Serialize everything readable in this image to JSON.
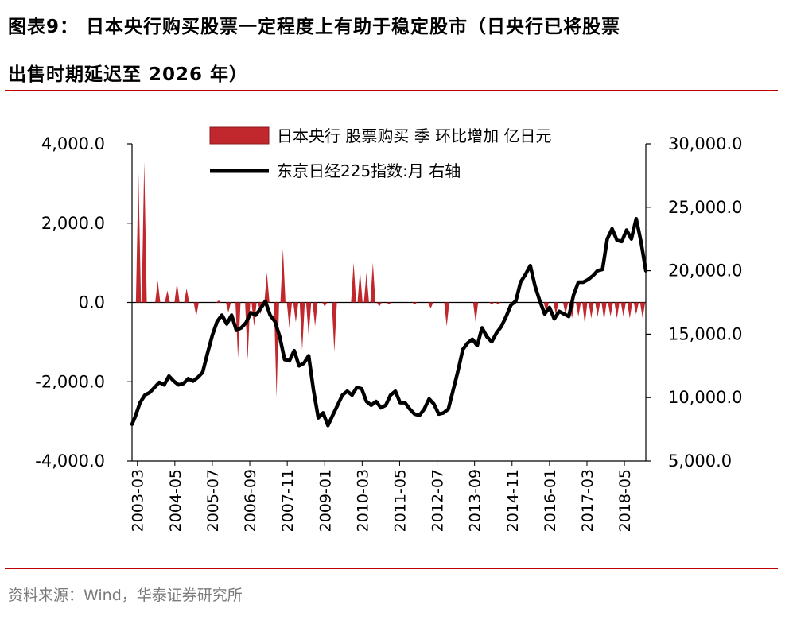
{
  "title": {
    "line1": "图表9：  日本央行购买股票一定程度上有助于稳定股市（日央行已将股票",
    "line2": "出售时期延迟至 2026 年）"
  },
  "source": "资料来源：Wind，华泰证券研究所",
  "colors": {
    "bar": "#c0282d",
    "line": "#000000",
    "accent": "#c00000"
  },
  "chart_data": {
    "type": "bar+line",
    "legend_position": "top-right",
    "x_ticks": [
      "2003-03",
      "2004-05",
      "2005-07",
      "2006-09",
      "2007-11",
      "2009-01",
      "2010-03",
      "2011-05",
      "2012-07",
      "2013-09",
      "2014-11",
      "2016-01",
      "2017-03",
      "2018-05"
    ],
    "y_left": {
      "min": -4000,
      "max": 4000,
      "ticks": [
        "4,000.0",
        "2,000.0",
        "0.0",
        "-2,000.0",
        "-4,000.0"
      ]
    },
    "y_right": {
      "min": 5000,
      "max": 30000,
      "ticks": [
        "30,000.0",
        "25,000.0",
        "20,000.0",
        "15,000.0",
        "10,000.0",
        "5,000.0"
      ]
    },
    "series": [
      {
        "name": "日本央行 股票购买 季 环比增加 亿日元",
        "type": "bar",
        "axis": "left",
        "x": [
          2003.2,
          2003.38,
          2003.8,
          2004.1,
          2004.4,
          2004.7,
          2005.0,
          2005.7,
          2006.0,
          2006.3,
          2006.6,
          2006.8,
          2007.0,
          2007.2,
          2007.5,
          2007.7,
          2007.9,
          2008.1,
          2008.3,
          2008.5,
          2008.7,
          2009.0,
          2009.3,
          2009.9,
          2010.1,
          2010.3,
          2010.5,
          2010.7,
          2011.0,
          2011.8,
          2012.3,
          2012.8,
          2013.7,
          2014.2,
          2014.4,
          2015.9,
          2016.2,
          2016.5,
          2016.7,
          2016.9,
          2017.1,
          2017.3,
          2017.5,
          2017.7,
          2017.9,
          2018.1,
          2018.3,
          2018.5,
          2018.7,
          2018.9
        ],
        "values": [
          3250,
          3550,
          550,
          300,
          500,
          350,
          -350,
          50,
          -250,
          -1400,
          -1450,
          -600,
          -300,
          750,
          -2400,
          1350,
          -650,
          -500,
          -1200,
          -850,
          -600,
          -100,
          -1250,
          1000,
          800,
          750,
          1000,
          -100,
          -50,
          -50,
          -150,
          -600,
          -500,
          -50,
          -50,
          -250,
          -300,
          -300,
          -400,
          -350,
          -550,
          -400,
          -350,
          -450,
          -350,
          -400,
          -350,
          -400,
          -300,
          -400
        ]
      },
      {
        "name": "东京日经225指数:月 右轴",
        "type": "line",
        "axis": "right",
        "x": [
          2003.0,
          2003.1,
          2003.25,
          2003.4,
          2003.55,
          2003.7,
          2003.85,
          2004.0,
          2004.15,
          2004.3,
          2004.45,
          2004.6,
          2004.75,
          2004.9,
          2005.05,
          2005.2,
          2005.35,
          2005.5,
          2005.65,
          2005.8,
          2005.95,
          2006.1,
          2006.25,
          2006.4,
          2006.55,
          2006.7,
          2006.85,
          2007.0,
          2007.15,
          2007.3,
          2007.45,
          2007.6,
          2007.75,
          2007.9,
          2008.05,
          2008.2,
          2008.35,
          2008.5,
          2008.65,
          2008.8,
          2008.95,
          2009.1,
          2009.25,
          2009.4,
          2009.55,
          2009.7,
          2009.85,
          2010.0,
          2010.15,
          2010.3,
          2010.45,
          2010.6,
          2010.75,
          2010.9,
          2011.05,
          2011.2,
          2011.35,
          2011.5,
          2011.65,
          2011.8,
          2011.95,
          2012.1,
          2012.25,
          2012.4,
          2012.55,
          2012.7,
          2012.85,
          2013.0,
          2013.15,
          2013.3,
          2013.45,
          2013.6,
          2013.75,
          2013.9,
          2014.05,
          2014.2,
          2014.35,
          2014.5,
          2014.65,
          2014.8,
          2014.95,
          2015.1,
          2015.25,
          2015.4,
          2015.55,
          2015.7,
          2015.85,
          2016.0,
          2016.15,
          2016.3,
          2016.45,
          2016.6,
          2016.75,
          2016.9,
          2017.05,
          2017.2,
          2017.35,
          2017.5,
          2017.65,
          2017.8,
          2017.95,
          2018.1,
          2018.25,
          2018.4,
          2018.55,
          2018.7,
          2018.85,
          2019.0
        ],
        "values": [
          7900,
          8500,
          9600,
          10200,
          10400,
          10800,
          11200,
          11000,
          11700,
          11300,
          11000,
          11100,
          11500,
          11300,
          11600,
          12000,
          13500,
          14900,
          16000,
          16500,
          15800,
          16500,
          15300,
          15500,
          15900,
          16700,
          16500,
          17000,
          17600,
          16500,
          16000,
          14800,
          13000,
          12900,
          13700,
          12500,
          12700,
          13300,
          10600,
          8400,
          8800,
          7800,
          8600,
          9400,
          10200,
          10500,
          10200,
          10800,
          10700,
          9700,
          9400,
          9700,
          9200,
          9400,
          10200,
          10500,
          9600,
          9600,
          9100,
          8700,
          8600,
          9100,
          9900,
          9500,
          8700,
          8800,
          9100,
          10600,
          12100,
          13800,
          14300,
          14600,
          14100,
          15500,
          14800,
          14400,
          15100,
          15600,
          16400,
          17300,
          17600,
          19100,
          19700,
          20400,
          18800,
          17600,
          16600,
          17100,
          16200,
          16800,
          16600,
          16400,
          18100,
          19100,
          19100,
          19300,
          19600,
          20000,
          20100,
          22500,
          23300,
          22400,
          22300,
          23200,
          22500,
          24100,
          22300,
          20000
        ]
      }
    ]
  }
}
